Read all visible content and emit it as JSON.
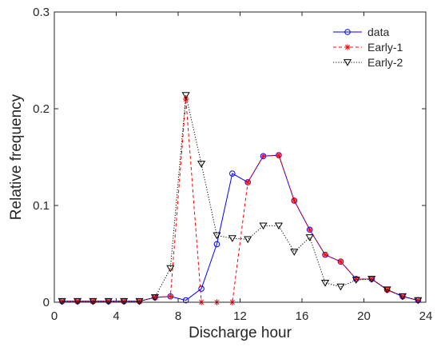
{
  "chart_data": {
    "type": "line",
    "title": "",
    "xlabel": "Discharge hour",
    "ylabel": "Relative frequency",
    "xlim": [
      0,
      24
    ],
    "ylim": [
      0,
      0.3
    ],
    "xticks": [
      0,
      4,
      8,
      12,
      16,
      20,
      24
    ],
    "yticks": [
      0,
      0.1,
      0.2,
      0.3
    ],
    "xtick_labels": [
      "0",
      "4",
      "8",
      "12",
      "16",
      "20",
      "24"
    ],
    "ytick_labels": [
      "0",
      "0.1",
      "0.2",
      "0.3"
    ],
    "grid": false,
    "legend_position": "top-right",
    "x": [
      0.5,
      1.5,
      2.5,
      3.5,
      4.5,
      5.5,
      6.5,
      7.5,
      8.5,
      9.5,
      10.5,
      11.5,
      12.5,
      13.5,
      14.5,
      15.5,
      16.5,
      17.5,
      18.5,
      19.5,
      20.5,
      21.5,
      22.5,
      23.5
    ],
    "series": [
      {
        "name": "data",
        "color": "#0000ff",
        "line_style": "solid",
        "marker": "circle",
        "values": [
          0.001,
          0.001,
          0.001,
          0.001,
          0.001,
          0.001,
          0.005,
          0.006,
          0.002,
          0.014,
          0.06,
          0.133,
          0.124,
          0.151,
          0.152,
          0.105,
          0.075,
          0.049,
          0.042,
          0.024,
          0.024,
          0.013,
          0.006,
          0.002
        ]
      },
      {
        "name": "Early-1",
        "color": "#ff0000",
        "line_style": "dashed",
        "marker": "asterisk",
        "values": [
          0.001,
          0.001,
          0.001,
          0.001,
          0.001,
          0.001,
          0.005,
          0.006,
          0.21,
          0.0,
          0.0,
          0.0,
          0.124,
          0.151,
          0.152,
          0.105,
          0.075,
          0.049,
          0.042,
          0.024,
          0.024,
          0.013,
          0.006,
          0.002
        ]
      },
      {
        "name": "Early-2",
        "color": "#000000",
        "line_style": "dotted",
        "marker": "triangle-down",
        "values": [
          0.001,
          0.001,
          0.001,
          0.001,
          0.001,
          0.001,
          0.005,
          0.035,
          0.214,
          0.143,
          0.069,
          0.066,
          0.065,
          0.079,
          0.079,
          0.052,
          0.067,
          0.02,
          0.016,
          0.023,
          0.024,
          0.013,
          0.006,
          0.002
        ]
      }
    ]
  }
}
